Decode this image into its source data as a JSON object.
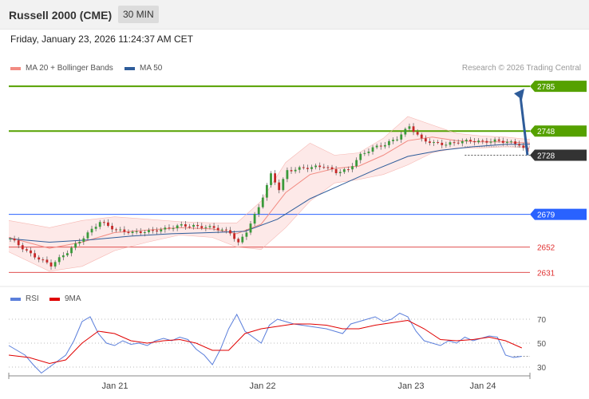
{
  "header": {
    "title": "Russell 2000 (CME)",
    "timeframe": "30 MIN"
  },
  "date": "Friday, January 23, 2026 11:24:37 AM CET",
  "credit": "Research © 2026 Trading Central",
  "legend": {
    "ma_bb": {
      "label": "MA 20 + Bollinger Bands",
      "color": "#f28b82"
    },
    "ma50": {
      "label": "MA 50",
      "color": "#2e5c9a"
    },
    "rsi": {
      "label": "RSI",
      "color": "#5b7fdb"
    },
    "ma9": {
      "label": "9MA",
      "color": "#e00000"
    }
  },
  "chart_data": [
    {
      "type": "candlestick",
      "title": "",
      "x_ticks": [
        "Jan 21",
        "Jan 22",
        "Jan 23",
        "Jan 24"
      ],
      "ylim": [
        2622,
        2797
      ],
      "levels": [
        {
          "value": 2785,
          "label": "2785",
          "style": "resistance",
          "color": "#55a100"
        },
        {
          "value": 2748,
          "label": "2748",
          "style": "resistance",
          "color": "#55a100"
        },
        {
          "value": 2728,
          "label": "2728",
          "style": "last-price",
          "color": "#333333"
        },
        {
          "value": 2679,
          "label": "2679",
          "style": "pivot",
          "color": "#2962ff"
        },
        {
          "value": 2652,
          "label": "2652",
          "style": "support",
          "color": "#e05050"
        },
        {
          "value": 2631,
          "label": "2631",
          "style": "support",
          "color": "#e05050"
        }
      ],
      "target_arrow": {
        "from": 2728,
        "to": 2785
      },
      "close_path": [
        [
          0,
          2659
        ],
        [
          5,
          2646
        ],
        [
          10,
          2637
        ],
        [
          14,
          2648
        ],
        [
          18,
          2660
        ],
        [
          22,
          2673
        ],
        [
          26,
          2666
        ],
        [
          30,
          2664
        ],
        [
          34,
          2665
        ],
        [
          38,
          2667
        ],
        [
          42,
          2670
        ],
        [
          46,
          2669
        ],
        [
          50,
          2668
        ],
        [
          54,
          2664
        ],
        [
          56,
          2655
        ],
        [
          58,
          2665
        ],
        [
          61,
          2685
        ],
        [
          64,
          2712
        ],
        [
          66,
          2700
        ],
        [
          68,
          2715
        ],
        [
          71,
          2717
        ],
        [
          74,
          2718
        ],
        [
          77,
          2719
        ],
        [
          80,
          2714
        ],
        [
          83,
          2716
        ],
        [
          86,
          2728
        ],
        [
          89,
          2734
        ],
        [
          92,
          2737
        ],
        [
          95,
          2742
        ],
        [
          98,
          2752
        ],
        [
          101,
          2741
        ],
        [
          104,
          2738
        ],
        [
          107,
          2737
        ],
        [
          110,
          2739
        ],
        [
          113,
          2740
        ],
        [
          116,
          2739
        ],
        [
          119,
          2740
        ],
        [
          122,
          2739
        ],
        [
          125,
          2737
        ],
        [
          127,
          2730
        ]
      ],
      "ma20_path": [
        [
          0,
          2660
        ],
        [
          10,
          2651
        ],
        [
          18,
          2656
        ],
        [
          26,
          2664
        ],
        [
          34,
          2666
        ],
        [
          42,
          2668
        ],
        [
          50,
          2667
        ],
        [
          56,
          2663
        ],
        [
          62,
          2671
        ],
        [
          68,
          2697
        ],
        [
          74,
          2712
        ],
        [
          80,
          2717
        ],
        [
          86,
          2719
        ],
        [
          92,
          2728
        ],
        [
          98,
          2740
        ],
        [
          104,
          2743
        ],
        [
          110,
          2740
        ],
        [
          116,
          2739
        ],
        [
          122,
          2739
        ],
        [
          128,
          2738
        ]
      ],
      "ma50_path": [
        [
          0,
          2659
        ],
        [
          10,
          2656
        ],
        [
          20,
          2658
        ],
        [
          30,
          2661
        ],
        [
          40,
          2663
        ],
        [
          50,
          2664
        ],
        [
          58,
          2665
        ],
        [
          66,
          2675
        ],
        [
          74,
          2692
        ],
        [
          82,
          2704
        ],
        [
          90,
          2716
        ],
        [
          98,
          2727
        ],
        [
          106,
          2732
        ],
        [
          114,
          2735
        ],
        [
          122,
          2737
        ],
        [
          128,
          2737
        ]
      ],
      "bb_upper": [
        [
          0,
          2674
        ],
        [
          10,
          2668
        ],
        [
          18,
          2674
        ],
        [
          26,
          2677
        ],
        [
          34,
          2675
        ],
        [
          42,
          2673
        ],
        [
          50,
          2672
        ],
        [
          56,
          2672
        ],
        [
          62,
          2690
        ],
        [
          68,
          2722
        ],
        [
          74,
          2738
        ],
        [
          80,
          2728
        ],
        [
          86,
          2730
        ],
        [
          92,
          2742
        ],
        [
          98,
          2760
        ],
        [
          104,
          2753
        ],
        [
          110,
          2746
        ],
        [
          116,
          2744
        ],
        [
          122,
          2743
        ],
        [
          128,
          2741
        ]
      ],
      "bb_lower": [
        [
          0,
          2648
        ],
        [
          10,
          2632
        ],
        [
          18,
          2636
        ],
        [
          26,
          2649
        ],
        [
          34,
          2656
        ],
        [
          42,
          2662
        ],
        [
          50,
          2660
        ],
        [
          56,
          2652
        ],
        [
          62,
          2650
        ],
        [
          68,
          2668
        ],
        [
          74,
          2690
        ],
        [
          80,
          2705
        ],
        [
          86,
          2708
        ],
        [
          92,
          2712
        ],
        [
          98,
          2720
        ],
        [
          104,
          2730
        ],
        [
          110,
          2734
        ],
        [
          116,
          2734
        ],
        [
          122,
          2735
        ],
        [
          128,
          2734
        ]
      ]
    },
    {
      "type": "line",
      "title": "",
      "y_ticks": [
        70,
        50,
        30
      ],
      "ylim": [
        22,
        82
      ],
      "series": [
        {
          "name": "RSI",
          "color": "#5b7fdb",
          "values": [
            [
              0,
              48
            ],
            [
              2,
              44
            ],
            [
              4,
              40
            ],
            [
              6,
              32
            ],
            [
              8,
              25
            ],
            [
              10,
              30
            ],
            [
              12,
              35
            ],
            [
              14,
              40
            ],
            [
              16,
              52
            ],
            [
              18,
              68
            ],
            [
              20,
              72
            ],
            [
              22,
              58
            ],
            [
              24,
              50
            ],
            [
              26,
              48
            ],
            [
              28,
              52
            ],
            [
              30,
              49
            ],
            [
              32,
              50
            ],
            [
              34,
              48
            ],
            [
              36,
              52
            ],
            [
              38,
              54
            ],
            [
              40,
              52
            ],
            [
              42,
              55
            ],
            [
              44,
              53
            ],
            [
              46,
              45
            ],
            [
              48,
              40
            ],
            [
              50,
              32
            ],
            [
              52,
              45
            ],
            [
              54,
              62
            ],
            [
              56,
              74
            ],
            [
              58,
              60
            ],
            [
              60,
              55
            ],
            [
              62,
              50
            ],
            [
              64,
              65
            ],
            [
              66,
              70
            ],
            [
              68,
              68
            ],
            [
              70,
              66
            ],
            [
              72,
              65
            ],
            [
              74,
              64
            ],
            [
              76,
              63
            ],
            [
              78,
              62
            ],
            [
              80,
              60
            ],
            [
              82,
              58
            ],
            [
              84,
              66
            ],
            [
              86,
              68
            ],
            [
              88,
              70
            ],
            [
              90,
              72
            ],
            [
              92,
              68
            ],
            [
              94,
              70
            ],
            [
              96,
              75
            ],
            [
              98,
              72
            ],
            [
              100,
              60
            ],
            [
              102,
              52
            ],
            [
              104,
              50
            ],
            [
              106,
              48
            ],
            [
              108,
              52
            ],
            [
              110,
              50
            ],
            [
              112,
              55
            ],
            [
              114,
              52
            ],
            [
              116,
              54
            ],
            [
              118,
              56
            ],
            [
              120,
              55
            ],
            [
              122,
              40
            ],
            [
              124,
              38
            ],
            [
              126,
              39
            ]
          ]
        },
        {
          "name": "9MA",
          "color": "#e00000",
          "values": [
            [
              0,
              40
            ],
            [
              5,
              38
            ],
            [
              10,
              33
            ],
            [
              14,
              36
            ],
            [
              18,
              50
            ],
            [
              22,
              60
            ],
            [
              26,
              58
            ],
            [
              30,
              52
            ],
            [
              34,
              50
            ],
            [
              38,
              52
            ],
            [
              42,
              53
            ],
            [
              46,
              50
            ],
            [
              50,
              44
            ],
            [
              54,
              44
            ],
            [
              58,
              58
            ],
            [
              62,
              62
            ],
            [
              66,
              64
            ],
            [
              70,
              66
            ],
            [
              74,
              66
            ],
            [
              78,
              65
            ],
            [
              82,
              62
            ],
            [
              86,
              62
            ],
            [
              90,
              65
            ],
            [
              94,
              67
            ],
            [
              98,
              69
            ],
            [
              102,
              62
            ],
            [
              106,
              53
            ],
            [
              110,
              52
            ],
            [
              114,
              53
            ],
            [
              118,
              55
            ],
            [
              122,
              52
            ],
            [
              126,
              46
            ]
          ]
        }
      ]
    }
  ]
}
